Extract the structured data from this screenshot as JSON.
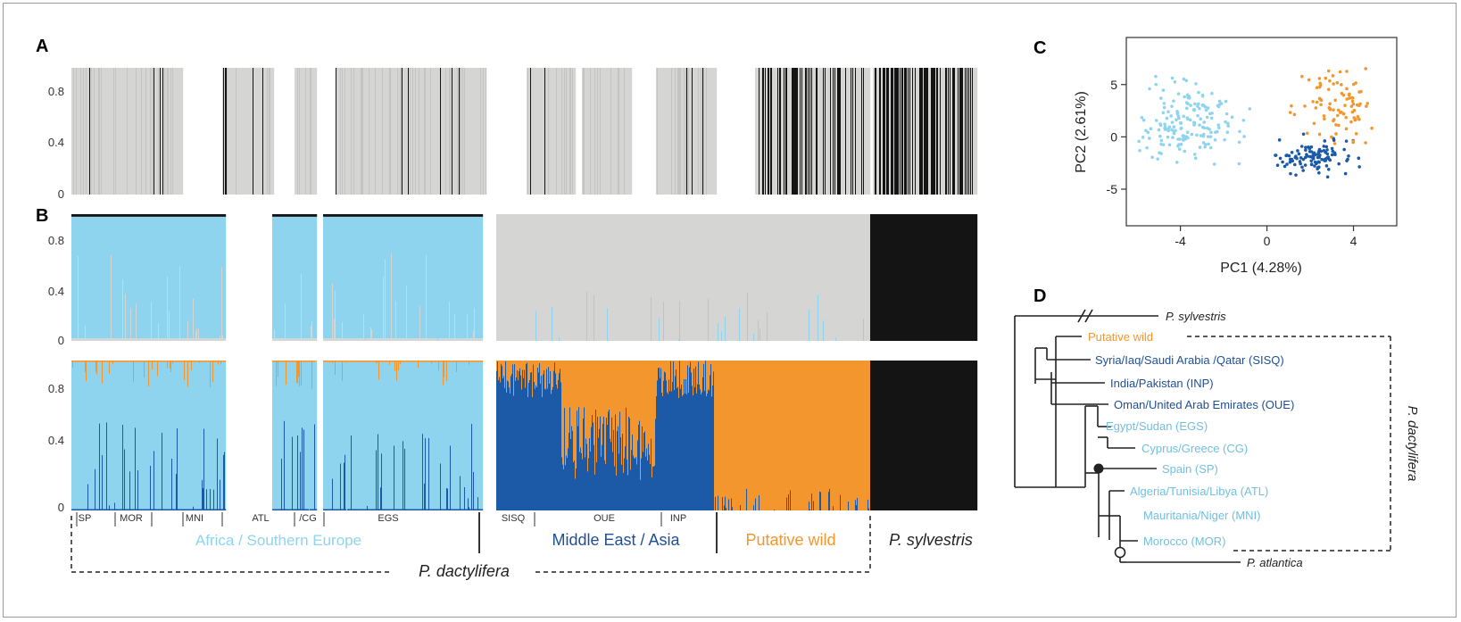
{
  "panels": {
    "a": "A",
    "b": "B",
    "c": "C",
    "d": "D"
  },
  "colors": {
    "light_blue": "#8fd4ef",
    "dark_blue": "#1c5aa8",
    "orange": "#f4962e",
    "grey": "#d5d5d3",
    "black": "#141414",
    "text_light": "#72c0e0",
    "text_dark": "#1f4f96"
  },
  "structure_plot": {
    "yticks": [
      "0",
      "0.4",
      "0.8"
    ],
    "group_codes": [
      "SP",
      "MOR",
      "MNI",
      "ATL",
      "/CG",
      "EGS",
      "SISQ",
      "OUE",
      "INP"
    ],
    "region_labels": [
      "Africa / Southern Europe",
      "Middle East / Asia",
      "Putative wild",
      "P. sylvestris"
    ],
    "species_label": "P. dactylifera"
  },
  "chart_data": [
    {
      "type": "bar",
      "panel": "A",
      "description_of_values": "admixture proportion K=2 (grey vs black), per sample",
      "ylim": [
        0,
        1
      ],
      "yticks": [
        0,
        0.4,
        0.8
      ],
      "groups": [
        {
          "code": "SP",
          "black_fraction": 0.02
        },
        {
          "code": "MOR",
          "black_fraction": 0.02
        },
        {
          "code": "MNI",
          "black_fraction": 0.01
        },
        {
          "code": "ATL",
          "black_fraction": 0.02
        },
        {
          "code": "CG",
          "black_fraction": 0.0
        },
        {
          "code": "EGS",
          "black_fraction": 0.03
        },
        {
          "code": "SISQ",
          "black_fraction": 0.06
        },
        {
          "code": "OUE",
          "black_fraction": 0.04
        },
        {
          "code": "INP",
          "black_fraction": 0.05
        },
        {
          "code": "Putative wild",
          "black_fraction": 0.35
        },
        {
          "code": "P. sylvestris",
          "black_fraction": 0.6
        }
      ]
    },
    {
      "type": "bar",
      "panel": "B (upper)",
      "ylim": [
        0,
        1
      ],
      "yticks": [
        0,
        0.4,
        0.8
      ],
      "series": [
        {
          "name": "light blue",
          "dominant_in": [
            "SP",
            "MOR",
            "MNI",
            "ATL",
            "CG",
            "EGS"
          ],
          "mean_fraction": 0.96
        },
        {
          "name": "grey",
          "dominant_in": [
            "SISQ",
            "OUE",
            "INP",
            "Putative wild"
          ],
          "mean_fraction": 0.98
        },
        {
          "name": "black",
          "dominant_in": [
            "P. sylvestris"
          ],
          "mean_fraction": 1.0
        }
      ]
    },
    {
      "type": "bar",
      "panel": "B (lower)",
      "ylim": [
        0,
        1
      ],
      "yticks": [
        0,
        0.4,
        0.8
      ],
      "series": [
        {
          "name": "light blue",
          "dominant_in": [
            "SP",
            "MOR",
            "MNI",
            "ATL",
            "CG",
            "EGS"
          ],
          "mean_fraction": 0.9
        },
        {
          "name": "dark blue",
          "dominant_in": [
            "SISQ",
            "INP"
          ],
          "mean_fraction": 0.75
        },
        {
          "name": "orange",
          "dominant_in": [
            "OUE",
            "Putative wild"
          ],
          "mean_fraction": 0.7
        },
        {
          "name": "black",
          "dominant_in": [
            "P. sylvestris"
          ],
          "mean_fraction": 1.0
        }
      ]
    },
    {
      "type": "scatter",
      "panel": "C",
      "xlabel": "PC1 (4.28%)",
      "ylabel": "PC2 (2.61%)",
      "xticks": [
        -4,
        0,
        4
      ],
      "yticks": [
        -5,
        0,
        5
      ],
      "xlim": [
        -6.5,
        6.0
      ],
      "ylim": [
        -8.5,
        9.5
      ],
      "series": [
        {
          "name": "light blue",
          "center": [
            -3.5,
            1.5
          ],
          "spread": [
            1.6,
            2.6
          ],
          "n": 170
        },
        {
          "name": "dark blue",
          "center": [
            2.2,
            -1.8
          ],
          "spread": [
            1.2,
            1.3
          ],
          "n": 110
        },
        {
          "name": "orange",
          "center": [
            3.2,
            3.0
          ],
          "spread": [
            1.3,
            2.3
          ],
          "n": 90
        }
      ]
    },
    {
      "type": "tree",
      "panel": "D",
      "tips": [
        {
          "label": "P. sylvestris",
          "color": "black"
        },
        {
          "label": "Putative wild",
          "color": "orange"
        },
        {
          "label": "Syria/Iaq/Saudi Arabia /Qatar (SISQ)",
          "color": "dark_blue"
        },
        {
          "label": "India/Pakistan (INP)",
          "color": "dark_blue"
        },
        {
          "label": "Oman/United Arab Emirates (OUE)",
          "color": "dark_blue"
        },
        {
          "label": "Egypt/Sudan (EGS)",
          "color": "light_blue"
        },
        {
          "label": "Cyprus/Greece (CG)",
          "color": "light_blue"
        },
        {
          "label": "Spain (SP)",
          "color": "light_blue"
        },
        {
          "label": "Algeria/Tunisia/Libya (ATL)",
          "color": "light_blue"
        },
        {
          "label": "Mauritania/Niger (MNI)",
          "color": "light_blue"
        },
        {
          "label": "Morocco (MOR)",
          "color": "light_blue"
        },
        {
          "label": "P. atlantica",
          "color": "black"
        }
      ],
      "bracket_label": "P. dactylifera"
    }
  ]
}
